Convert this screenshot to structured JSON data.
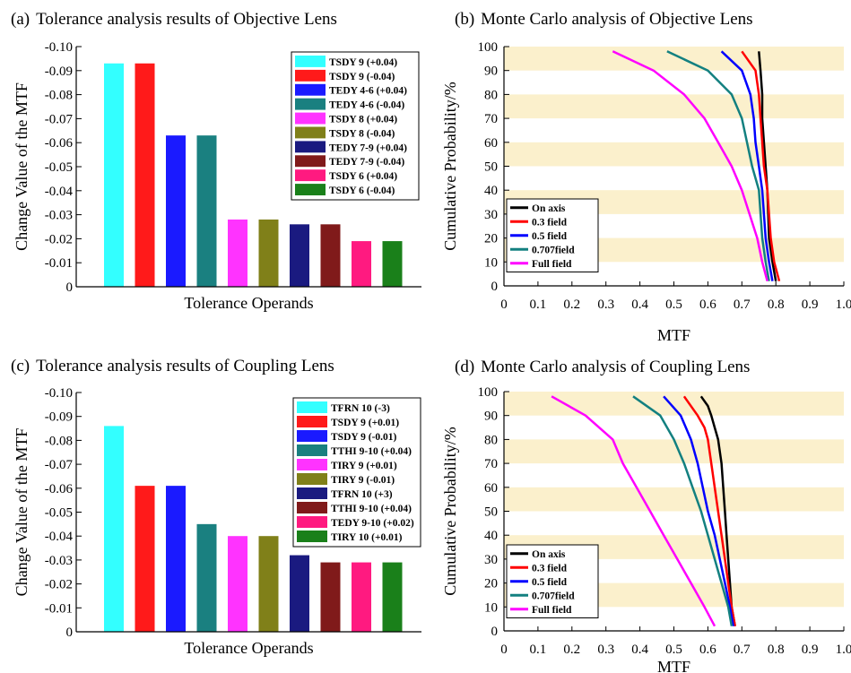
{
  "chart_data": [
    {
      "panel": "(a)",
      "type": "bar",
      "title": "Tolerance analysis results of Objective Lens",
      "xlabel": "Tolerance Operands",
      "ylabel": "Change Value of the MTF",
      "ylim": [
        0,
        -0.1
      ],
      "yticks": [
        "0",
        "-0.01",
        "-0.02",
        "-0.03",
        "-0.04",
        "-0.05",
        "-0.06",
        "-0.07",
        "-0.08",
        "-0.09",
        "-0.10"
      ],
      "legend_position": "top-right",
      "bars": [
        {
          "name": "TSDY 9  (+0.04)",
          "value": -0.093,
          "color": "#33ffff"
        },
        {
          "name": "TSDY 9 (-0.04)",
          "value": -0.093,
          "color": "#ff1a1a"
        },
        {
          "name": "TEDY 4-6 (+0.04)",
          "value": -0.063,
          "color": "#1a1aff"
        },
        {
          "name": "TEDY 4-6 (-0.04)",
          "value": -0.063,
          "color": "#1a8080"
        },
        {
          "name": "TSDY 8 (+0.04)",
          "value": -0.028,
          "color": "#ff33ff"
        },
        {
          "name": "TSDY 8 (-0.04)",
          "value": -0.028,
          "color": "#808019"
        },
        {
          "name": "TEDY 7-9 (+0.04)",
          "value": -0.026,
          "color": "#1a1a80"
        },
        {
          "name": "TEDY 7-9 (-0.04)",
          "value": -0.026,
          "color": "#801a1a"
        },
        {
          "name": "TSDY 6 (+0.04)",
          "value": -0.019,
          "color": "#ff1a80"
        },
        {
          "name": "TSDY 6 (-0.04)",
          "value": -0.019,
          "color": "#1a801a"
        }
      ]
    },
    {
      "panel": "(b)",
      "type": "line",
      "title": "Monte Carlo analysis of Objective Lens",
      "xlabel": "MTF",
      "ylabel": "Cumulative Probability/%",
      "xlim": [
        0,
        1.0
      ],
      "ylim": [
        0,
        100
      ],
      "xticks": [
        "0",
        "0.1",
        "0.2",
        "0.3",
        "0.4",
        "0.5",
        "0.6",
        "0.7",
        "0.8",
        "0.9",
        "1.0"
      ],
      "yticks": [
        "0",
        "10",
        "20",
        "30",
        "40",
        "50",
        "60",
        "70",
        "80",
        "90",
        "100"
      ],
      "grid": "alternating horizontal bands",
      "legend_position": "bottom-left",
      "series": [
        {
          "name": "On axis",
          "color": "#000000",
          "x": [
            0.8,
            0.79,
            0.78,
            0.775,
            0.77,
            0.765,
            0.76,
            0.76,
            0.755,
            0.75
          ],
          "y": [
            2,
            10,
            20,
            40,
            50,
            60,
            70,
            80,
            90,
            98
          ]
        },
        {
          "name": "0.3 field",
          "color": "#ff0000",
          "x": [
            0.81,
            0.795,
            0.785,
            0.775,
            0.765,
            0.76,
            0.755,
            0.75,
            0.74,
            0.7
          ],
          "y": [
            2,
            10,
            20,
            40,
            50,
            60,
            70,
            80,
            90,
            98
          ]
        },
        {
          "name": "0.5 field",
          "color": "#0000ff",
          "x": [
            0.79,
            0.78,
            0.77,
            0.76,
            0.75,
            0.74,
            0.735,
            0.725,
            0.7,
            0.64
          ],
          "y": [
            2,
            10,
            20,
            40,
            50,
            60,
            70,
            80,
            90,
            98
          ]
        },
        {
          "name": "0.707field",
          "color": "#138080",
          "x": [
            0.78,
            0.77,
            0.76,
            0.75,
            0.73,
            0.715,
            0.7,
            0.67,
            0.6,
            0.48
          ],
          "y": [
            2,
            10,
            20,
            40,
            50,
            60,
            70,
            80,
            90,
            98
          ]
        },
        {
          "name": "Full field",
          "color": "#ff00ff",
          "x": [
            0.775,
            0.76,
            0.745,
            0.7,
            0.67,
            0.63,
            0.59,
            0.53,
            0.44,
            0.32
          ],
          "y": [
            2,
            10,
            20,
            40,
            50,
            60,
            70,
            80,
            90,
            98
          ]
        }
      ]
    },
    {
      "panel": "(c)",
      "type": "bar",
      "title": "Tolerance analysis results of Coupling Lens",
      "xlabel": "Tolerance Operands",
      "ylabel": "Change Value of the MTF",
      "ylim": [
        0,
        -0.1
      ],
      "yticks": [
        "0",
        "-0.01",
        "-0.02",
        "-0.03",
        "-0.04",
        "-0.05",
        "-0.06",
        "-0.07",
        "-0.08",
        "-0.09",
        "-0.10"
      ],
      "legend_position": "top-right",
      "bars": [
        {
          "name": "TFRN 10 (-3)",
          "value": -0.086,
          "color": "#33ffff"
        },
        {
          "name": "TSDY 9 (+0.01)",
          "value": -0.061,
          "color": "#ff1a1a"
        },
        {
          "name": "TSDY 9 (-0.01)",
          "value": -0.061,
          "color": "#1a1aff"
        },
        {
          "name": "TTHI 9-10 (+0.04)",
          "value": -0.045,
          "color": "#1a8080"
        },
        {
          "name": "TIRY 9 (+0.01)",
          "value": -0.04,
          "color": "#ff33ff"
        },
        {
          "name": "TIRY 9 (-0.01)",
          "value": -0.04,
          "color": "#808019"
        },
        {
          "name": "TFRN 10 (+3)",
          "value": -0.032,
          "color": "#1a1a80"
        },
        {
          "name": "TTHI 9-10 (+0.04)",
          "value": -0.029,
          "color": "#801a1a"
        },
        {
          "name": "TEDY 9-10 (+0.02)",
          "value": -0.029,
          "color": "#ff1a80"
        },
        {
          "name": "TIRY 10 (+0.01)",
          "value": -0.029,
          "color": "#1a801a"
        }
      ]
    },
    {
      "panel": "(d)",
      "type": "line",
      "title": "Monte Carlo analysis of Coupling Lens",
      "xlabel": "MTF",
      "ylabel": "Cumulative Probability/%",
      "xlim": [
        0,
        1.0
      ],
      "ylim": [
        0,
        100
      ],
      "xticks": [
        "0",
        "0.1",
        "0.2",
        "0.3",
        "0.4",
        "0.5",
        "0.6",
        "0.7",
        "0.8",
        "0.9",
        "1.0"
      ],
      "yticks": [
        "0",
        "10",
        "20",
        "30",
        "40",
        "50",
        "60",
        "70",
        "80",
        "90",
        "100"
      ],
      "grid": "alternating horizontal bands",
      "legend_position": "bottom-left",
      "series": [
        {
          "name": "On axis",
          "color": "#000000",
          "x": [
            0.68,
            0.67,
            0.665,
            0.66,
            0.655,
            0.65,
            0.645,
            0.64,
            0.63,
            0.62,
            0.61,
            0.6,
            0.58
          ],
          "y": [
            2,
            10,
            20,
            30,
            40,
            50,
            60,
            70,
            80,
            85,
            90,
            94,
            98
          ]
        },
        {
          "name": "0.3 field",
          "color": "#ff0000",
          "x": [
            0.68,
            0.67,
            0.66,
            0.65,
            0.64,
            0.63,
            0.62,
            0.61,
            0.6,
            0.59,
            0.57,
            0.53
          ],
          "y": [
            2,
            10,
            20,
            30,
            40,
            50,
            60,
            70,
            80,
            85,
            90,
            98
          ]
        },
        {
          "name": "0.5 field",
          "color": "#0000ff",
          "x": [
            0.675,
            0.665,
            0.65,
            0.635,
            0.62,
            0.6,
            0.585,
            0.57,
            0.55,
            0.52,
            0.47
          ],
          "y": [
            2,
            10,
            20,
            30,
            40,
            50,
            60,
            70,
            80,
            90,
            98
          ]
        },
        {
          "name": "0.707field",
          "color": "#138080",
          "x": [
            0.67,
            0.66,
            0.64,
            0.62,
            0.6,
            0.58,
            0.555,
            0.53,
            0.5,
            0.46,
            0.38
          ],
          "y": [
            2,
            10,
            20,
            30,
            40,
            50,
            60,
            70,
            80,
            90,
            98
          ]
        },
        {
          "name": "Full field",
          "color": "#ff00ff",
          "x": [
            0.62,
            0.59,
            0.55,
            0.51,
            0.47,
            0.43,
            0.39,
            0.35,
            0.32,
            0.24,
            0.14
          ],
          "y": [
            2,
            10,
            20,
            30,
            40,
            50,
            60,
            70,
            80,
            90,
            98
          ]
        }
      ]
    }
  ]
}
